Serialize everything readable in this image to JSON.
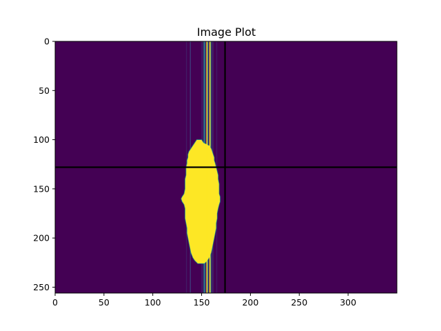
{
  "chart_data": {
    "type": "heatmap",
    "title": "Image Plot",
    "xlabel": "",
    "ylabel": "",
    "xlim": [
      0,
      350
    ],
    "ylim": [
      256,
      0
    ],
    "x_ticks": [
      0,
      50,
      100,
      150,
      200,
      250,
      300
    ],
    "y_ticks": [
      0,
      50,
      100,
      150,
      200,
      250
    ],
    "colormap": "viridis",
    "colors": {
      "background": "#440154",
      "high": "#fde725",
      "mid": "#21918c",
      "edge": "#3b528b",
      "crosshair": "#000000"
    },
    "grid": false,
    "crosshair": {
      "x": 174,
      "y": 128
    },
    "column_profile": [
      [
        134,
        0.1
      ],
      [
        138,
        0.22
      ],
      [
        150,
        0.15
      ],
      [
        152,
        0.65
      ],
      [
        153,
        0.4
      ],
      [
        155,
        1.0
      ],
      [
        156,
        0.55
      ],
      [
        158,
        1.0
      ],
      [
        159,
        0.55
      ],
      [
        161,
        0.2
      ],
      [
        165,
        0.1
      ]
    ],
    "blob_rows": [
      [
        100,
        145,
        150
      ],
      [
        103,
        143,
        152
      ],
      [
        106,
        141,
        158
      ],
      [
        109,
        139,
        160
      ],
      [
        112,
        137,
        161
      ],
      [
        115,
        136,
        162
      ],
      [
        118,
        136,
        163
      ],
      [
        121,
        135,
        163
      ],
      [
        124,
        135,
        164
      ],
      [
        128,
        134,
        165
      ],
      [
        132,
        134,
        166
      ],
      [
        136,
        134,
        167
      ],
      [
        140,
        133,
        167
      ],
      [
        145,
        133,
        168
      ],
      [
        150,
        133,
        168
      ],
      [
        155,
        132,
        168
      ],
      [
        158,
        130,
        169
      ],
      [
        160,
        129,
        169
      ],
      [
        163,
        130,
        169
      ],
      [
        166,
        132,
        168
      ],
      [
        170,
        133,
        167
      ],
      [
        175,
        133,
        166
      ],
      [
        180,
        133,
        166
      ],
      [
        185,
        134,
        165
      ],
      [
        190,
        135,
        165
      ],
      [
        195,
        135,
        164
      ],
      [
        200,
        136,
        163
      ],
      [
        205,
        137,
        162
      ],
      [
        210,
        138,
        161
      ],
      [
        215,
        139,
        160
      ],
      [
        220,
        141,
        158
      ],
      [
        223,
        143,
        156
      ],
      [
        226,
        146,
        153
      ]
    ]
  }
}
